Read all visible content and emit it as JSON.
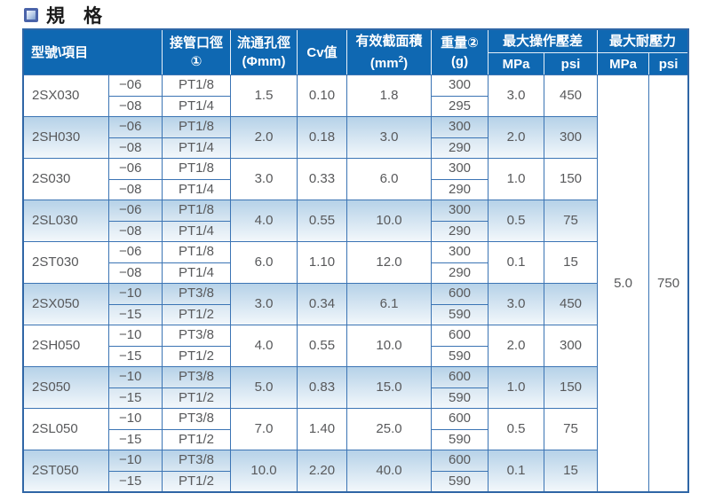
{
  "title": {
    "text": "規　格"
  },
  "colors": {
    "header_bg": "#0f68b2",
    "cell_border": "#3b74b4",
    "outer_border": "#2f66a6",
    "shade_top": "#b6d2e8",
    "shade_bottom": "#f2f7fb",
    "header_text": "#ffffff",
    "body_text": "#58595b"
  },
  "table": {
    "headers": {
      "model_item": "型號\\項目",
      "port": {
        "line1": "接管口徑",
        "line2": "①"
      },
      "orifice": {
        "line1": "流通孔徑",
        "line2": "(Φmm)"
      },
      "cv": "Cv值",
      "area": {
        "line1": "有效截面積",
        "unit_prefix": "(mm",
        "unit_sup": "2",
        "unit_suffix": ")"
      },
      "weight": {
        "line1": "重量②",
        "line2": "(g)"
      },
      "max_operating_diff": "最大操作壓差",
      "max_withstand": "最大耐壓力",
      "mpa": "MPa",
      "psi": "psi"
    },
    "rows": [
      {
        "model": "2SX030",
        "sub": [
          {
            "size": "−06",
            "port": "PT1/8",
            "weight": "300"
          },
          {
            "size": "−08",
            "port": "PT1/4",
            "weight": "295"
          }
        ],
        "orifice": "1.5",
        "cv": "0.10",
        "area": "1.8",
        "op_mpa": "3.0",
        "op_psi": "450"
      },
      {
        "model": "2SH030",
        "sub": [
          {
            "size": "−06",
            "port": "PT1/8",
            "weight": "300"
          },
          {
            "size": "−08",
            "port": "PT1/4",
            "weight": "290"
          }
        ],
        "orifice": "2.0",
        "cv": "0.18",
        "area": "3.0",
        "op_mpa": "2.0",
        "op_psi": "300"
      },
      {
        "model": "2S030",
        "sub": [
          {
            "size": "−06",
            "port": "PT1/8",
            "weight": "300"
          },
          {
            "size": "−08",
            "port": "PT1/4",
            "weight": "290"
          }
        ],
        "orifice": "3.0",
        "cv": "0.33",
        "area": "6.0",
        "op_mpa": "1.0",
        "op_psi": "150"
      },
      {
        "model": "2SL030",
        "sub": [
          {
            "size": "−06",
            "port": "PT1/8",
            "weight": "300"
          },
          {
            "size": "−08",
            "port": "PT1/4",
            "weight": "290"
          }
        ],
        "orifice": "4.0",
        "cv": "0.55",
        "area": "10.0",
        "op_mpa": "0.5",
        "op_psi": "75"
      },
      {
        "model": "2ST030",
        "sub": [
          {
            "size": "−06",
            "port": "PT1/8",
            "weight": "300"
          },
          {
            "size": "−08",
            "port": "PT1/4",
            "weight": "290"
          }
        ],
        "orifice": "6.0",
        "cv": "1.10",
        "area": "12.0",
        "op_mpa": "0.1",
        "op_psi": "15"
      },
      {
        "model": "2SX050",
        "sub": [
          {
            "size": "−10",
            "port": "PT3/8",
            "weight": "600"
          },
          {
            "size": "−15",
            "port": "PT1/2",
            "weight": "590"
          }
        ],
        "orifice": "3.0",
        "cv": "0.34",
        "area": "6.1",
        "op_mpa": "3.0",
        "op_psi": "450"
      },
      {
        "model": "2SH050",
        "sub": [
          {
            "size": "−10",
            "port": "PT3/8",
            "weight": "600"
          },
          {
            "size": "−15",
            "port": "PT1/2",
            "weight": "590"
          }
        ],
        "orifice": "4.0",
        "cv": "0.55",
        "area": "10.0",
        "op_mpa": "2.0",
        "op_psi": "300"
      },
      {
        "model": "2S050",
        "sub": [
          {
            "size": "−10",
            "port": "PT3/8",
            "weight": "600"
          },
          {
            "size": "−15",
            "port": "PT1/2",
            "weight": "590"
          }
        ],
        "orifice": "5.0",
        "cv": "0.83",
        "area": "15.0",
        "op_mpa": "1.0",
        "op_psi": "150"
      },
      {
        "model": "2SL050",
        "sub": [
          {
            "size": "−10",
            "port": "PT3/8",
            "weight": "600"
          },
          {
            "size": "−15",
            "port": "PT1/2",
            "weight": "590"
          }
        ],
        "orifice": "7.0",
        "cv": "1.40",
        "area": "25.0",
        "op_mpa": "0.5",
        "op_psi": "75"
      },
      {
        "model": "2ST050",
        "sub": [
          {
            "size": "−10",
            "port": "PT3/8",
            "weight": "600"
          },
          {
            "size": "−15",
            "port": "PT1/2",
            "weight": "590"
          }
        ],
        "orifice": "10.0",
        "cv": "2.20",
        "area": "40.0",
        "op_mpa": "0.1",
        "op_psi": "15"
      }
    ],
    "withstand": {
      "mpa": "5.0",
      "psi": "750"
    }
  }
}
